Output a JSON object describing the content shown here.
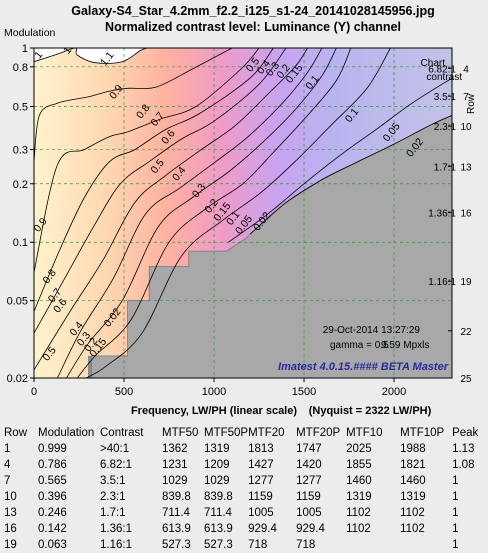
{
  "header": {
    "title": "Galaxy-S4_Star_4.2mm_f2.2_i125_s1-24_20141028145956.jpg",
    "subtitle": "Normalized contrast level:  Luminance (Y) channel"
  },
  "chart_data": {
    "type": "contour",
    "ylabel": "Modulation",
    "xlabel": "Frequency, LW/PH (linear scale)",
    "nyquist_label": "(Nyquist = 2322 LW/PH)",
    "xlim": [
      0,
      2322
    ],
    "ylim": [
      0.02,
      1
    ],
    "y_scale": "log",
    "x_ticks": [
      0,
      500,
      1000,
      1500,
      2000
    ],
    "y_ticks": [
      0.02,
      0.05,
      0.1,
      0.2,
      0.3,
      0.5,
      0.8,
      1
    ],
    "y_tick_labels": [
      "0.02",
      "0.05",
      "0.1",
      "0.2",
      "0.3",
      "0.5",
      "0.8",
      "1"
    ],
    "grid": true,
    "right_axis": {
      "title_lines": [
        "Chart",
        "contrast"
      ],
      "row_label": "Row",
      "entries": [
        {
          "contrast": "6.82:1",
          "row": "4",
          "modulation": 0.786
        },
        {
          "contrast": "3.5:1",
          "row": "7",
          "modulation": 0.565
        },
        {
          "contrast": "2.3:1",
          "row": "10",
          "modulation": 0.396
        },
        {
          "contrast": "1.7:1",
          "row": "13",
          "modulation": 0.246
        },
        {
          "contrast": "1.36:1",
          "row": "16",
          "modulation": 0.142
        },
        {
          "contrast": "1.16:1",
          "row": "19",
          "modulation": 0.063
        },
        {
          "contrast": "",
          "row": "22",
          "modulation": 0.035
        },
        {
          "contrast": "",
          "row": "25",
          "modulation": 0.02
        }
      ]
    },
    "contour_levels": [
      {
        "level": 1,
        "label": "1",
        "points": [
          [
            0,
            0.85
          ],
          [
            130,
            0.93
          ],
          [
            230,
            1
          ],
          [
            240,
            0.92
          ],
          [
            340,
            0.84
          ],
          [
            490,
            0.85
          ],
          [
            590,
            0.97
          ],
          [
            630,
            1
          ]
        ],
        "color": "#000000"
      },
      {
        "level": 0.9,
        "label": "0.9",
        "points": [
          [
            0,
            0.26
          ],
          [
            30,
            0.45
          ],
          [
            130,
            0.52
          ],
          [
            300,
            0.56
          ],
          [
            420,
            0.6
          ],
          [
            520,
            0.62
          ],
          [
            680,
            0.63
          ],
          [
            880,
            0.78
          ],
          [
            1100,
            1
          ]
        ],
        "color": "#000000"
      },
      {
        "level": 0.8,
        "label": "0.8",
        "points": [
          [
            0,
            0.07
          ],
          [
            130,
            0.25
          ],
          [
            280,
            0.3
          ],
          [
            420,
            0.35
          ],
          [
            520,
            0.37
          ],
          [
            700,
            0.43
          ],
          [
            900,
            0.5
          ],
          [
            1150,
            0.78
          ],
          [
            1250,
            1
          ]
        ],
        "color": "#000000"
      },
      {
        "level": 0.7,
        "label": "0.7",
        "points": [
          [
            0,
            0.044
          ],
          [
            140,
            0.09
          ],
          [
            280,
            0.17
          ],
          [
            420,
            0.26
          ],
          [
            560,
            0.3
          ],
          [
            730,
            0.38
          ],
          [
            920,
            0.46
          ],
          [
            1200,
            0.7
          ],
          [
            1330,
            1
          ]
        ],
        "color": "#000000"
      },
      {
        "level": 0.6,
        "label": "0.6",
        "points": [
          [
            0,
            0.034
          ],
          [
            170,
            0.065
          ],
          [
            330,
            0.12
          ],
          [
            480,
            0.2
          ],
          [
            640,
            0.26
          ],
          [
            820,
            0.34
          ],
          [
            1000,
            0.42
          ],
          [
            1250,
            0.65
          ],
          [
            1400,
            1
          ]
        ],
        "color": "#000000"
      },
      {
        "level": 0.5,
        "label": "0.5",
        "points": [
          [
            0,
            0.022
          ],
          [
            200,
            0.044
          ],
          [
            380,
            0.08
          ],
          [
            560,
            0.16
          ],
          [
            730,
            0.22
          ],
          [
            930,
            0.3
          ],
          [
            1120,
            0.4
          ],
          [
            1300,
            0.58
          ],
          [
            1450,
            0.8
          ],
          [
            1520,
            1
          ]
        ],
        "color": "#000000"
      },
      {
        "level": 0.4,
        "label": "0.4",
        "points": [
          [
            130,
            0.02
          ],
          [
            260,
            0.035
          ],
          [
            440,
            0.065
          ],
          [
            620,
            0.14
          ],
          [
            810,
            0.19
          ],
          [
            1010,
            0.26
          ],
          [
            1190,
            0.35
          ],
          [
            1380,
            0.52
          ],
          [
            1520,
            0.75
          ],
          [
            1600,
            1
          ]
        ],
        "color": "#000000"
      },
      {
        "level": 0.3,
        "label": "0.3",
        "points": [
          [
            180,
            0.02
          ],
          [
            300,
            0.03
          ],
          [
            490,
            0.05
          ],
          [
            690,
            0.12
          ],
          [
            880,
            0.17
          ],
          [
            1080,
            0.23
          ],
          [
            1260,
            0.32
          ],
          [
            1450,
            0.48
          ],
          [
            1600,
            0.72
          ],
          [
            1680,
            1
          ]
        ],
        "color": "#000000"
      },
      {
        "level": 0.2,
        "label": "0.2",
        "points": [
          [
            240,
            0.02
          ],
          [
            340,
            0.026
          ],
          [
            540,
            0.04
          ],
          [
            750,
            0.1
          ],
          [
            960,
            0.15
          ],
          [
            1160,
            0.2
          ],
          [
            1330,
            0.29
          ],
          [
            1520,
            0.45
          ],
          [
            1680,
            0.68
          ],
          [
            1760,
            1
          ]
        ],
        "color": "#000000"
      },
      {
        "level": 0.1,
        "label": "0.1",
        "points": [
          [
            290,
            0.02
          ],
          [
            400,
            0.023
          ],
          [
            600,
            0.034
          ],
          [
            820,
            0.085
          ],
          [
            1050,
            0.13
          ],
          [
            1260,
            0.18
          ],
          [
            1450,
            0.26
          ],
          [
            1650,
            0.4
          ],
          [
            1850,
            0.62
          ],
          [
            1980,
            1
          ]
        ],
        "color": "#000000"
      },
      {
        "level": 0.05,
        "label": "0.05",
        "points": [
          [
            1080,
            0.1
          ],
          [
            1300,
            0.14
          ],
          [
            1500,
            0.2
          ],
          [
            1700,
            0.28
          ],
          [
            1900,
            0.38
          ],
          [
            2100,
            0.52
          ],
          [
            2322,
            0.7
          ]
        ],
        "color": "#000000"
      },
      {
        "level": 0.02,
        "label": "0.02",
        "points": [
          [
            1200,
            0.11
          ],
          [
            1400,
            0.16
          ],
          [
            1600,
            0.21
          ],
          [
            1800,
            0.26
          ],
          [
            2000,
            0.32
          ],
          [
            2200,
            0.4
          ],
          [
            2322,
            0.45
          ]
        ],
        "color": "#000000"
      }
    ],
    "contour_labels": [
      {
        "text": "1",
        "x": 40,
        "y": 0.9
      },
      {
        "text": "1",
        "x": 200,
        "y": 0.95
      },
      {
        "text": "1.1",
        "x": 420,
        "y": 0.86
      },
      {
        "text": "0.9",
        "x": 470,
        "y": 0.58
      },
      {
        "text": "0.8",
        "x": 620,
        "y": 0.46
      },
      {
        "text": "0.7",
        "x": 700,
        "y": 0.42
      },
      {
        "text": "0.6",
        "x": 760,
        "y": 0.34
      },
      {
        "text": "0.5",
        "x": 700,
        "y": 0.24
      },
      {
        "text": "0.4",
        "x": 820,
        "y": 0.22
      },
      {
        "text": "0.3",
        "x": 930,
        "y": 0.18
      },
      {
        "text": "0.2",
        "x": 1000,
        "y": 0.15
      },
      {
        "text": "0.15",
        "x": 1060,
        "y": 0.14
      },
      {
        "text": "0.1",
        "x": 1120,
        "y": 0.13
      },
      {
        "text": "0.05",
        "x": 1180,
        "y": 0.12
      },
      {
        "text": "0.02",
        "x": 1280,
        "y": 0.125
      },
      {
        "text": "0.5",
        "x": 1230,
        "y": 0.8
      },
      {
        "text": "0.4",
        "x": 1290,
        "y": 0.78
      },
      {
        "text": "0.3",
        "x": 1340,
        "y": 0.76
      },
      {
        "text": "0.2",
        "x": 1400,
        "y": 0.74
      },
      {
        "text": "0.15",
        "x": 1460,
        "y": 0.72
      },
      {
        "text": "0.1",
        "x": 1560,
        "y": 0.65
      },
      {
        "text": "0.1",
        "x": 1780,
        "y": 0.44
      },
      {
        "text": "0.05",
        "x": 2000,
        "y": 0.36
      },
      {
        "text": "0.02",
        "x": 2130,
        "y": 0.3
      },
      {
        "text": "0.9",
        "x": 50,
        "y": 0.12
      },
      {
        "text": "0.8",
        "x": 100,
        "y": 0.065
      },
      {
        "text": "0.7",
        "x": 130,
        "y": 0.052
      },
      {
        "text": "0.6",
        "x": 160,
        "y": 0.046
      },
      {
        "text": "0.5",
        "x": 100,
        "y": 0.026
      },
      {
        "text": "0.4",
        "x": 250,
        "y": 0.035
      },
      {
        "text": "0.3",
        "x": 290,
        "y": 0.031
      },
      {
        "text": "0.2",
        "x": 330,
        "y": 0.029
      },
      {
        "text": "0.15",
        "x": 370,
        "y": 0.028
      },
      {
        "text": "0.02",
        "x": 450,
        "y": 0.04
      }
    ],
    "annotations": {
      "date": "29-Oct-2014 13:27:29",
      "gamma": "gamma = 0.5",
      "mpxls": "9.59 Mpxls",
      "software": "Imatest 4.0.15.#### BETA Master"
    }
  },
  "table": {
    "headers": [
      "Row",
      "Modulation",
      "Contrast",
      "MTF50",
      "MTF50P",
      "MTF20",
      "MTF20P",
      "MTF10",
      "MTF10P",
      "Peak"
    ],
    "rows": [
      [
        "1",
        "0.999",
        ">40:1",
        "1362",
        "1319",
        "1813",
        "1747",
        "2025",
        "1988",
        "1.13"
      ],
      [
        "4",
        "0.786",
        "6.82:1",
        "1231",
        "1209",
        "1427",
        "1420",
        "1855",
        "1821",
        "1.08"
      ],
      [
        "7",
        "0.565",
        "3.5:1",
        "1029",
        "1029",
        "1277",
        "1277",
        "1460",
        "1460",
        "1"
      ],
      [
        "10",
        "0.396",
        "2.3:1",
        "839.8",
        "839.8",
        "1159",
        "1159",
        "1319",
        "1319",
        "1"
      ],
      [
        "13",
        "0.246",
        "1.7:1",
        "711.4",
        "711.4",
        "1005",
        "1005",
        "1102",
        "1102",
        "1"
      ],
      [
        "16",
        "0.142",
        "1.36:1",
        "613.9",
        "613.9",
        "929.4",
        "929.4",
        "1102",
        "1102",
        "1"
      ],
      [
        "19",
        "0.063",
        "1.16:1",
        "527.3",
        "527.3",
        "718",
        "718",
        "",
        "",
        "1"
      ]
    ]
  },
  "colors": {
    "background": "#ececec",
    "gray_region": "#a8a8a8",
    "gray_dark": "#909090",
    "grid": "#3c8c3c",
    "software_text": "#2a2aa0"
  }
}
